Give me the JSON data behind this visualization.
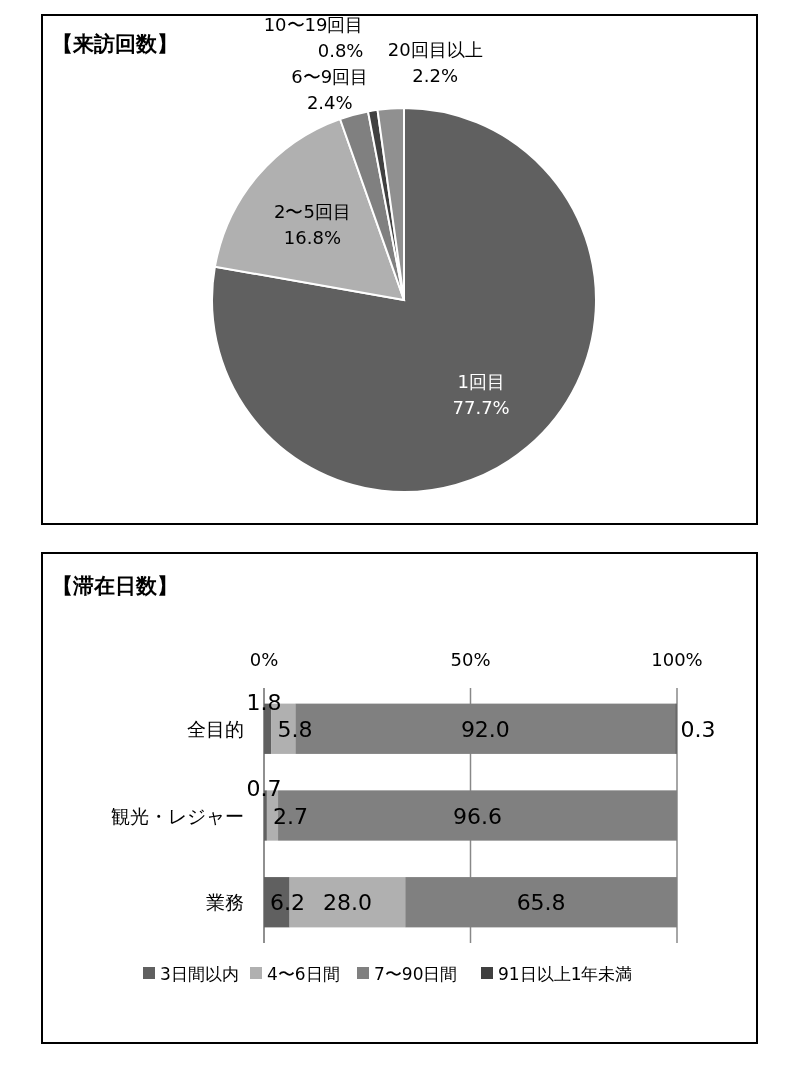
{
  "chart_data": [
    {
      "type": "pie",
      "title": "【来訪回数】",
      "categories": [
        "1回目",
        "2〜5回目",
        "6〜9回目",
        "10〜19回目",
        "20回目以上"
      ],
      "values": [
        77.7,
        16.8,
        2.4,
        0.8,
        2.2
      ],
      "value_labels": [
        "77.7%",
        "16.8%",
        "2.4%",
        "0.8%",
        "2.2%"
      ],
      "colors": [
        "#606060",
        "#b0b0b0",
        "#808080",
        "#404040",
        "#909090"
      ]
    },
    {
      "type": "bar",
      "title": "【滞在日数】",
      "orientation": "horizontal",
      "stacked": true,
      "categories": [
        "全目的",
        "観光・レジャー",
        "業務"
      ],
      "series": [
        {
          "name": "3日間以内",
          "color": "#606060",
          "values": [
            1.8,
            0.7,
            6.2
          ],
          "value_labels": [
            "1.8",
            "0.7",
            "6.2"
          ]
        },
        {
          "name": "4〜6日間",
          "color": "#b0b0b0",
          "values": [
            5.8,
            2.7,
            28.0
          ],
          "value_labels": [
            "5.8",
            "2.7",
            "28.0"
          ]
        },
        {
          "name": "7〜90日間",
          "color": "#808080",
          "values": [
            92.0,
            96.6,
            65.8
          ],
          "value_labels": [
            "92.0",
            "96.6",
            "65.8"
          ]
        },
        {
          "name": "91日以上1年未満",
          "color": "#404040",
          "values": [
            0.3,
            null,
            null
          ],
          "value_labels": [
            "0.3",
            null,
            null
          ]
        }
      ],
      "xlim": [
        0,
        100
      ],
      "xticks": [
        {
          "value": 0,
          "label": "0%"
        },
        {
          "value": 50,
          "label": "50%"
        },
        {
          "value": 100,
          "label": "100%"
        }
      ],
      "grid": "x",
      "legend": "bottom"
    }
  ]
}
